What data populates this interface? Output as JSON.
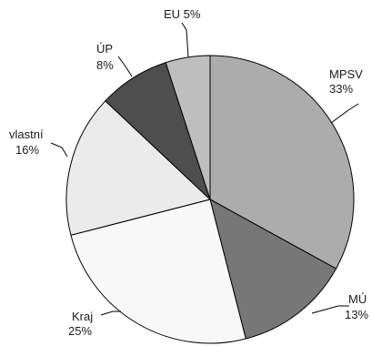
{
  "chart_data": {
    "type": "pie",
    "title": "",
    "start_angle_deg": -90,
    "direction": "clockwise",
    "slices": [
      {
        "label": "MPSV",
        "value": 33,
        "value_label": "33%",
        "color": "#acacac"
      },
      {
        "label": "MÚ",
        "value": 13,
        "value_label": "13%",
        "color": "#777777"
      },
      {
        "label": "Kraj",
        "value": 25,
        "value_label": "25%",
        "color": "#f8f8f8"
      },
      {
        "label": "vlastní",
        "value": 16,
        "value_label": "16%",
        "color": "#ebebeb"
      },
      {
        "label": "ÚP",
        "value": 8,
        "value_label": "8%",
        "color": "#4e4e4e"
      },
      {
        "label": "EU",
        "value": 5,
        "value_label": "5%",
        "color": "#bebebe"
      }
    ]
  }
}
